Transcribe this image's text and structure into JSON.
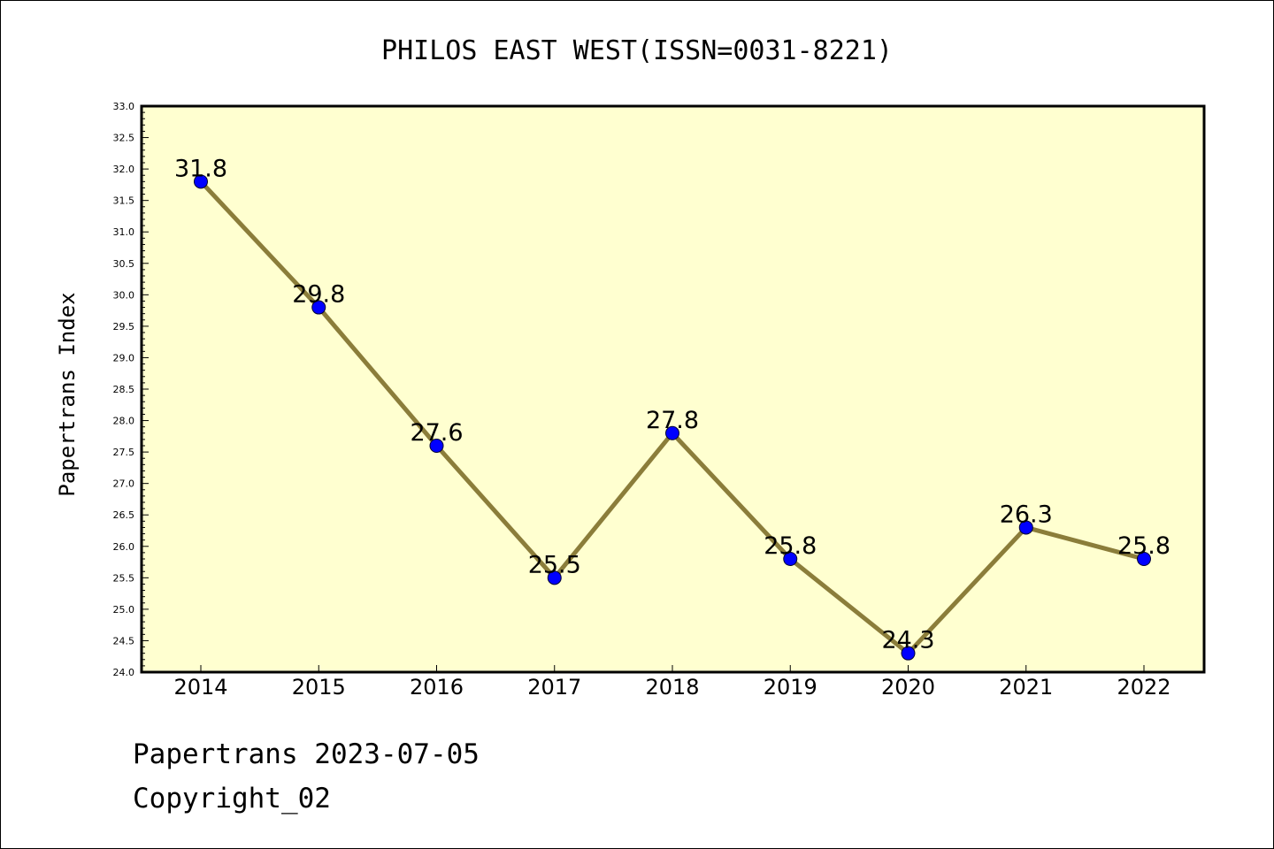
{
  "chart_data": {
    "type": "line",
    "title": "PHILOS EAST WEST(ISSN=0031-8221)",
    "ylabel": "Papertrans Index",
    "xlabel": "",
    "categories": [
      "2014",
      "2015",
      "2016",
      "2017",
      "2018",
      "2019",
      "2020",
      "2021",
      "2022"
    ],
    "series": [
      {
        "values": [
          31.8,
          29.8,
          27.6,
          25.5,
          27.8,
          25.8,
          24.3,
          26.3,
          25.8
        ]
      }
    ],
    "data_labels": [
      "31.8",
      "29.8",
      "27.6",
      "25.5",
      "27.8",
      "25.8",
      "24.3",
      "26.3",
      "25.8"
    ],
    "ylim": [
      24.0,
      33.0
    ],
    "yticks": [
      "24.0",
      "24.5",
      "25.0",
      "25.5",
      "26.0",
      "26.5",
      "27.0",
      "27.5",
      "28.0",
      "28.5",
      "29.0",
      "29.5",
      "30.0",
      "30.5",
      "31.0",
      "31.5",
      "32.0",
      "32.5",
      "33.0"
    ],
    "grid": false,
    "colors": {
      "plot_background": "#ffffd0",
      "line": "#8b7d3a",
      "marker": "#0000ff"
    }
  },
  "footer": {
    "line1": "Papertrans 2023-07-05",
    "line2": "Copyright_02"
  }
}
